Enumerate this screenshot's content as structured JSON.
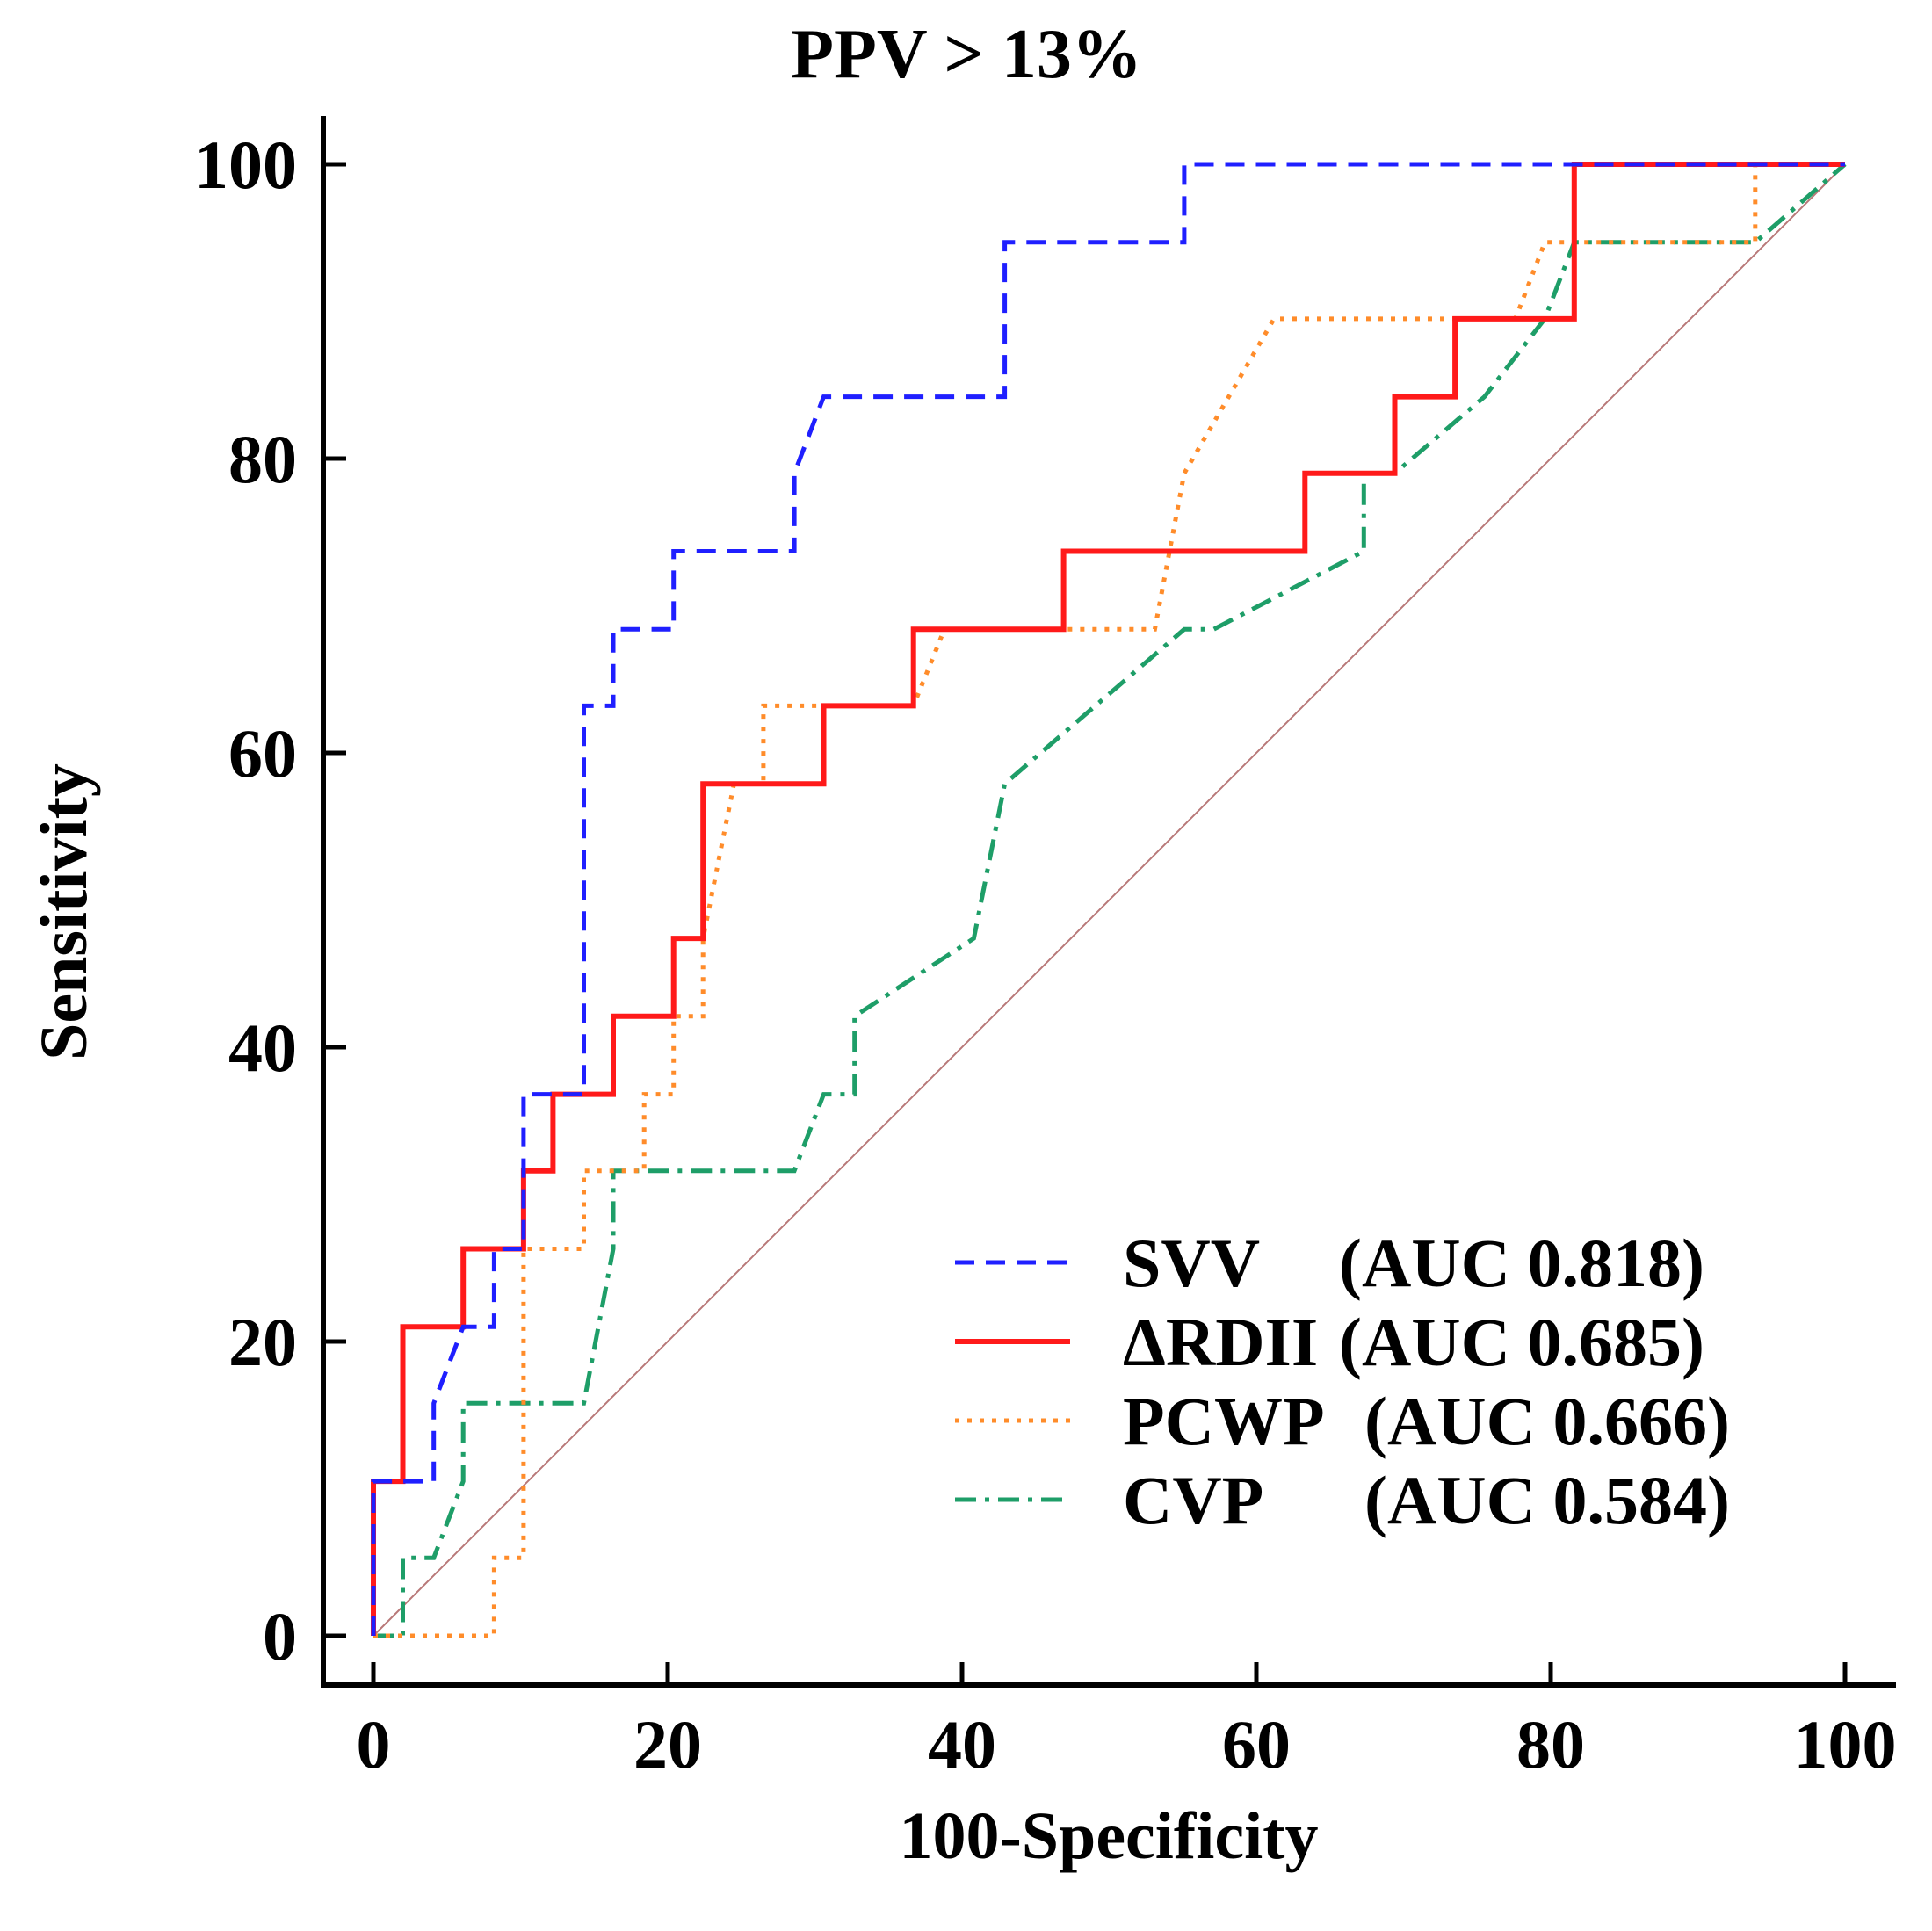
{
  "chart_data": {
    "type": "line",
    "title": "PPV > 13%",
    "xlabel": "100-Specificity",
    "ylabel": "Sensitivity",
    "xlim": [
      0,
      100
    ],
    "ylim": [
      0,
      100
    ],
    "xticks": [
      "0",
      "20",
      "40",
      "60",
      "80",
      "100"
    ],
    "yticks": [
      "0",
      "20",
      "40",
      "60",
      "80",
      "100"
    ],
    "grid": false,
    "legend_position": "bottom-right",
    "reference_line": {
      "name": "chance",
      "color": "#b87878",
      "points": [
        [
          0,
          0
        ],
        [
          100,
          100
        ]
      ]
    },
    "series": [
      {
        "name": "SVV",
        "auc_label": "(AUC 0.818)",
        "color": "#1f1fff",
        "style": "dashed",
        "points": [
          [
            0,
            0
          ],
          [
            0,
            10.5
          ],
          [
            4.1,
            10.5
          ],
          [
            4.1,
            15.8
          ],
          [
            6.1,
            21
          ],
          [
            8.2,
            21
          ],
          [
            8.2,
            26.3
          ],
          [
            10.2,
            26.3
          ],
          [
            10.2,
            36.8
          ],
          [
            14.3,
            36.8
          ],
          [
            14.3,
            63.2
          ],
          [
            16.3,
            63.2
          ],
          [
            16.3,
            68.4
          ],
          [
            20.4,
            68.4
          ],
          [
            20.4,
            73.7
          ],
          [
            28.6,
            73.7
          ],
          [
            28.6,
            79
          ],
          [
            30.6,
            84.2
          ],
          [
            42.9,
            84.2
          ],
          [
            42.9,
            94.7
          ],
          [
            55.1,
            94.7
          ],
          [
            55.1,
            100
          ],
          [
            100,
            100
          ]
        ]
      },
      {
        "name": "ΔRDII",
        "auc_label": "(AUC 0.685)",
        "color": "#ff1a1a",
        "style": "solid",
        "points": [
          [
            0,
            0
          ],
          [
            0,
            10.5
          ],
          [
            2,
            10.5
          ],
          [
            2,
            21
          ],
          [
            6.1,
            21
          ],
          [
            6.1,
            26.3
          ],
          [
            10.2,
            26.3
          ],
          [
            10.2,
            31.6
          ],
          [
            12.2,
            31.6
          ],
          [
            12.2,
            36.8
          ],
          [
            16.3,
            36.8
          ],
          [
            16.3,
            42.1
          ],
          [
            20.4,
            42.1
          ],
          [
            20.4,
            47.4
          ],
          [
            22.4,
            47.4
          ],
          [
            22.4,
            57.9
          ],
          [
            30.6,
            57.9
          ],
          [
            30.6,
            63.2
          ],
          [
            36.7,
            63.2
          ],
          [
            36.7,
            68.4
          ],
          [
            46.9,
            68.4
          ],
          [
            46.9,
            73.7
          ],
          [
            63.3,
            73.7
          ],
          [
            63.3,
            79
          ],
          [
            69.4,
            79
          ],
          [
            69.4,
            84.2
          ],
          [
            73.5,
            84.2
          ],
          [
            73.5,
            89.5
          ],
          [
            81.6,
            89.5
          ],
          [
            81.6,
            100
          ],
          [
            100,
            100
          ]
        ]
      },
      {
        "name": "PCWP",
        "auc_label": "(AUC 0.666)",
        "color": "#ff8c2a",
        "style": "dotted",
        "points": [
          [
            0,
            0
          ],
          [
            8.2,
            0
          ],
          [
            8.2,
            5.3
          ],
          [
            10.2,
            5.3
          ],
          [
            10.2,
            26.3
          ],
          [
            14.3,
            26.3
          ],
          [
            14.3,
            31.6
          ],
          [
            18.4,
            31.6
          ],
          [
            18.4,
            36.8
          ],
          [
            20.4,
            36.8
          ],
          [
            20.4,
            42.1
          ],
          [
            22.4,
            42.1
          ],
          [
            22.4,
            47.4
          ],
          [
            24.5,
            57.9
          ],
          [
            26.5,
            57.9
          ],
          [
            26.5,
            63.2
          ],
          [
            36.7,
            63.2
          ],
          [
            38.8,
            68.4
          ],
          [
            53.1,
            68.4
          ],
          [
            55.1,
            79
          ],
          [
            61.2,
            89.5
          ],
          [
            77.6,
            89.5
          ],
          [
            79.6,
            94.7
          ],
          [
            93.9,
            94.7
          ],
          [
            93.9,
            100
          ],
          [
            100,
            100
          ]
        ]
      },
      {
        "name": "CVP",
        "auc_label": "(AUC 0.584)",
        "color": "#1e9e68",
        "style": "dashdot",
        "points": [
          [
            0,
            0
          ],
          [
            2,
            0
          ],
          [
            2,
            5.3
          ],
          [
            4.1,
            5.3
          ],
          [
            6.1,
            10.5
          ],
          [
            6.1,
            15.8
          ],
          [
            14.3,
            15.8
          ],
          [
            16.3,
            26.3
          ],
          [
            16.3,
            31.6
          ],
          [
            28.6,
            31.6
          ],
          [
            30.6,
            36.8
          ],
          [
            32.7,
            36.8
          ],
          [
            32.7,
            42.1
          ],
          [
            40.8,
            47.4
          ],
          [
            42.9,
            57.9
          ],
          [
            55.1,
            68.4
          ],
          [
            57.1,
            68.4
          ],
          [
            67.3,
            73.7
          ],
          [
            67.3,
            79
          ],
          [
            69.4,
            79
          ],
          [
            75.5,
            84.2
          ],
          [
            79.6,
            89.5
          ],
          [
            81.6,
            94.7
          ],
          [
            93.9,
            94.7
          ],
          [
            100,
            100
          ]
        ]
      }
    ]
  }
}
